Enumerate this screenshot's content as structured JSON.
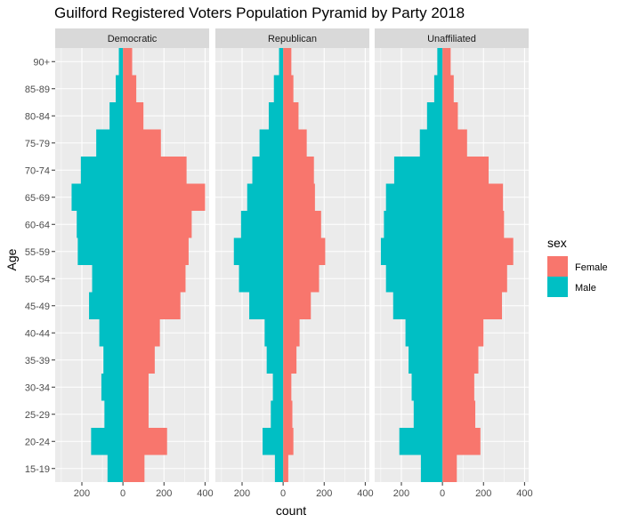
{
  "chart_data": {
    "type": "bar",
    "title": "Guilford Registered Voters Population Pyramid by Party 2018",
    "xlabel": "count",
    "ylabel": "Age",
    "categories": [
      "15-19",
      "20-24",
      "25-29",
      "30-34",
      "35-39",
      "40-44",
      "45-49",
      "50-54",
      "55-59",
      "60-64",
      "65-69",
      "70-74",
      "75-79",
      "80-84",
      "85-89",
      "90+"
    ],
    "xlim": [
      -330,
      420
    ],
    "x_ticks": [
      -200,
      0,
      200,
      400
    ],
    "x_tick_labels": [
      "200",
      "0",
      "200",
      "400"
    ],
    "panels": [
      {
        "name": "Democratic",
        "female": [
          105,
          215,
          125,
          125,
          155,
          180,
          280,
          305,
          320,
          335,
          400,
          310,
          185,
          100,
          65,
          45
        ],
        "male": [
          -75,
          -155,
          -90,
          -105,
          -95,
          -115,
          -165,
          -150,
          -220,
          -225,
          -250,
          -205,
          -130,
          -65,
          -35,
          -20
        ]
      },
      {
        "name": "Republican",
        "female": [
          25,
          50,
          45,
          40,
          65,
          80,
          135,
          175,
          205,
          185,
          155,
          150,
          115,
          75,
          50,
          40
        ],
        "male": [
          -40,
          -100,
          -60,
          -50,
          -80,
          -90,
          -165,
          -215,
          -240,
          -205,
          -175,
          -150,
          -115,
          -70,
          -45,
          -20
        ]
      },
      {
        "name": "Unaffiliated",
        "female": [
          70,
          185,
          160,
          155,
          175,
          200,
          290,
          315,
          345,
          300,
          295,
          225,
          120,
          75,
          55,
          40
        ],
        "male": [
          -105,
          -210,
          -140,
          -150,
          -165,
          -180,
          -240,
          -275,
          -300,
          -285,
          -275,
          -235,
          -110,
          -75,
          -40,
          -25
        ]
      }
    ],
    "legend": {
      "title": "sex",
      "position": "right",
      "entries": [
        {
          "label": "Female",
          "color": "#F8766D"
        },
        {
          "label": "Male",
          "color": "#00BFC4"
        }
      ]
    },
    "grid": true
  },
  "colors": {
    "panel_bg": "#EBEBEB",
    "grid_major": "#FFFFFF",
    "strip_bg": "#D9D9D9",
    "female": "#F8766D",
    "male": "#00BFC4"
  }
}
